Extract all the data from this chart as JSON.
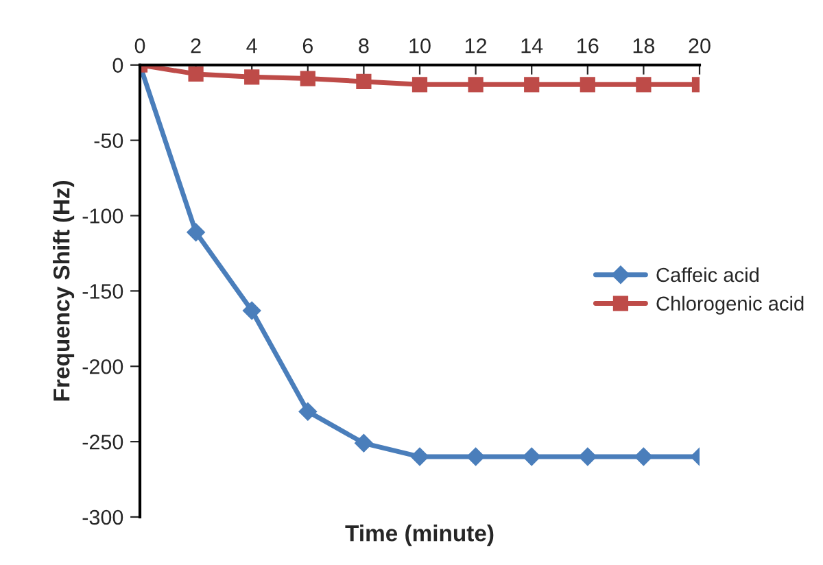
{
  "chart_data": {
    "type": "line",
    "xlabel": "Time (minute)",
    "ylabel": "Frequency Shift (Hz)",
    "x": [
      0,
      2,
      4,
      6,
      8,
      10,
      12,
      14,
      16,
      18,
      20
    ],
    "series": [
      {
        "name": "Caffeic acid",
        "color": "#4a7ebb",
        "marker": "diamond",
        "values": [
          0,
          -111,
          -163,
          -230,
          -251,
          -260,
          -260,
          -260,
          -260,
          -260,
          -260
        ]
      },
      {
        "name": "Chlorogenic acid",
        "color": "#be4b48",
        "marker": "square",
        "values": [
          0,
          -6,
          -8,
          -9,
          -11,
          -13,
          -13,
          -13,
          -13,
          -13,
          -13
        ]
      }
    ],
    "xlim": [
      0,
      20
    ],
    "xticks": [
      0,
      2,
      4,
      6,
      8,
      10,
      12,
      14,
      16,
      18,
      20
    ],
    "ylim": [
      -300,
      0
    ],
    "yticks": [
      -300,
      -250,
      -200,
      -150,
      -100,
      -50,
      0
    ],
    "grid": false,
    "legend": "right",
    "line_style": "solid"
  }
}
